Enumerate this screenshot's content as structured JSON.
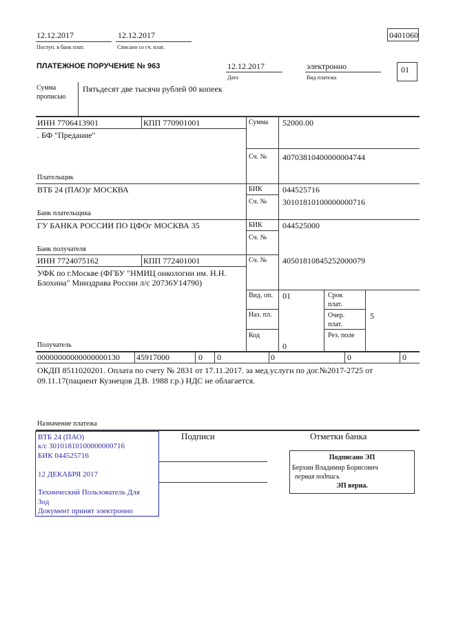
{
  "header": {
    "received_date": "12.12.2017",
    "received_label": "Поступ. в банк плат.",
    "debited_date": "12.12.2017",
    "debited_label": "Списано со сч. плат.",
    "form_code": "0401060"
  },
  "order": {
    "title": "ПЛАТЕЖНОЕ ПОРУЧЕНИЕ № 963",
    "date": "12.12.2017",
    "date_label": "Дата",
    "payment_type": "электронно",
    "payment_type_label": "Вид платежа",
    "status_code": "01"
  },
  "amount_words": {
    "label_1": "Сумма",
    "label_2": "прописью",
    "value": "Пятьдесят две тысячи рублей 00 копеек"
  },
  "payer": {
    "inn": "ИНН 7706413901",
    "kpp": "КПП 770901001",
    "name": ". БФ \"Предание\"",
    "label": "Плательщик",
    "amount_label": "Сумма",
    "amount": "52000.00",
    "account_label": "Сч. №",
    "account": "40703810400000004744"
  },
  "payer_bank": {
    "name": "ВТБ 24 (ПАО)г МОСКВА",
    "label": "Банк плательщика",
    "bik_label": "БИК",
    "bik": "044525716",
    "account_label": "Сч. №",
    "account": "30101810100000000716"
  },
  "payee_bank": {
    "name": "ГУ БАНКА РОССИИ ПО ЦФОг МОСКВА 35",
    "label": "Банк получателя",
    "bik_label": "БИК",
    "bik": "044525000",
    "account_label": "Сч. №"
  },
  "payee": {
    "inn": "ИНН 7724075162",
    "kpp": "КПП 772401001",
    "name_1": "УФК по г.Москве (ФГБУ \"НМИЦ онкологии им. Н.Н.",
    "name_2": "Блохина\" Минздрава России л/с 20736У14790)",
    "label": "Получатель",
    "account_label": "Сч. №",
    "account": "40501810845252000079"
  },
  "codes": {
    "op_type_label": "Вид. оп.",
    "op_type": "01",
    "purpose_label": "Наз. пл.",
    "code_label": "Код",
    "code": "0",
    "term_label_1": "Срок",
    "term_label_2": "плат.",
    "priority_label_1": "Очер.",
    "priority_label_2": "плат.",
    "priority": "5",
    "reserve_label": "Рез. поле"
  },
  "tax_fields": [
    "00000000000000000130",
    "45917000",
    "0",
    "0",
    "0",
    "0",
    "0"
  ],
  "purpose": {
    "line_1": "ОКДП 8511020201. Оплата по счету № 2831 от 17.11.2017. за мед.услуги по дог.№2017-2725 от",
    "line_2": "09.11.17(пациент Кузнецов Д.В. 1988 г.р.) НДС не облагается.",
    "label": "Назначение платежа"
  },
  "stamp": {
    "lines": [
      "ВТБ 24 (ПАО)",
      "к/с 30101810100000000716",
      "БИК 044525716",
      "",
      "12 ДЕКАБРЯ 2017",
      "",
      "Технический Пользователь Для",
      "Зод",
      "Документ принят электронно"
    ],
    "color": "#2a2aa8"
  },
  "signatures": {
    "label": "Подписи"
  },
  "bank_marks": {
    "label": "Отметки банка",
    "signed": "Подписано ЭП",
    "signer": "Берхин Владимир Борисович",
    "role": "первая подпись",
    "verified": "ЭП верна."
  }
}
